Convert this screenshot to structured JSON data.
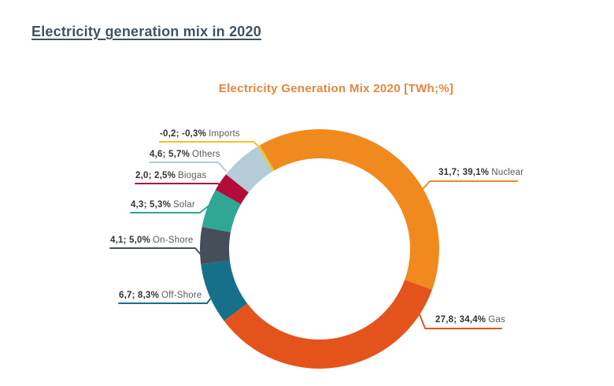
{
  "page": {
    "title": "Electricity generation mix in 2020"
  },
  "chart_data": {
    "type": "pie",
    "subtype": "donut",
    "title": "Electricity Generation Mix 2020 [TWh;%]",
    "title_color": "#E8853C",
    "units": "TWh;%",
    "start_angle_deg": -30,
    "direction": "clockwise",
    "segments": [
      {
        "name": "Nuclear",
        "twh": 31.7,
        "pct": 39.1,
        "value_label": "31,7; 39,1%",
        "color": "#F08A1E"
      },
      {
        "name": "Gas",
        "twh": 27.8,
        "pct": 34.4,
        "value_label": "27,8; 34,4%",
        "color": "#E5531C"
      },
      {
        "name": "Off-Shore",
        "twh": 6.7,
        "pct": 8.3,
        "value_label": "6,7; 8,3%",
        "color": "#16708A"
      },
      {
        "name": "On-Shore",
        "twh": 4.1,
        "pct": 5.0,
        "value_label": "4,1; 5,0%",
        "color": "#454E59"
      },
      {
        "name": "Solar",
        "twh": 4.3,
        "pct": 5.3,
        "value_label": "4,3; 5,3%",
        "color": "#2FA794"
      },
      {
        "name": "Biogas",
        "twh": 2.0,
        "pct": 2.5,
        "value_label": "2,0; 2,5%",
        "color": "#B20C39"
      },
      {
        "name": "Others",
        "twh": 4.6,
        "pct": 5.7,
        "value_label": "4,6; 5,7%",
        "color": "#B3CCD6"
      },
      {
        "name": "Imports",
        "twh": -0.2,
        "pct": -0.3,
        "value_label": "-0,2; -0,3%",
        "color": "#F2C41F"
      }
    ]
  }
}
